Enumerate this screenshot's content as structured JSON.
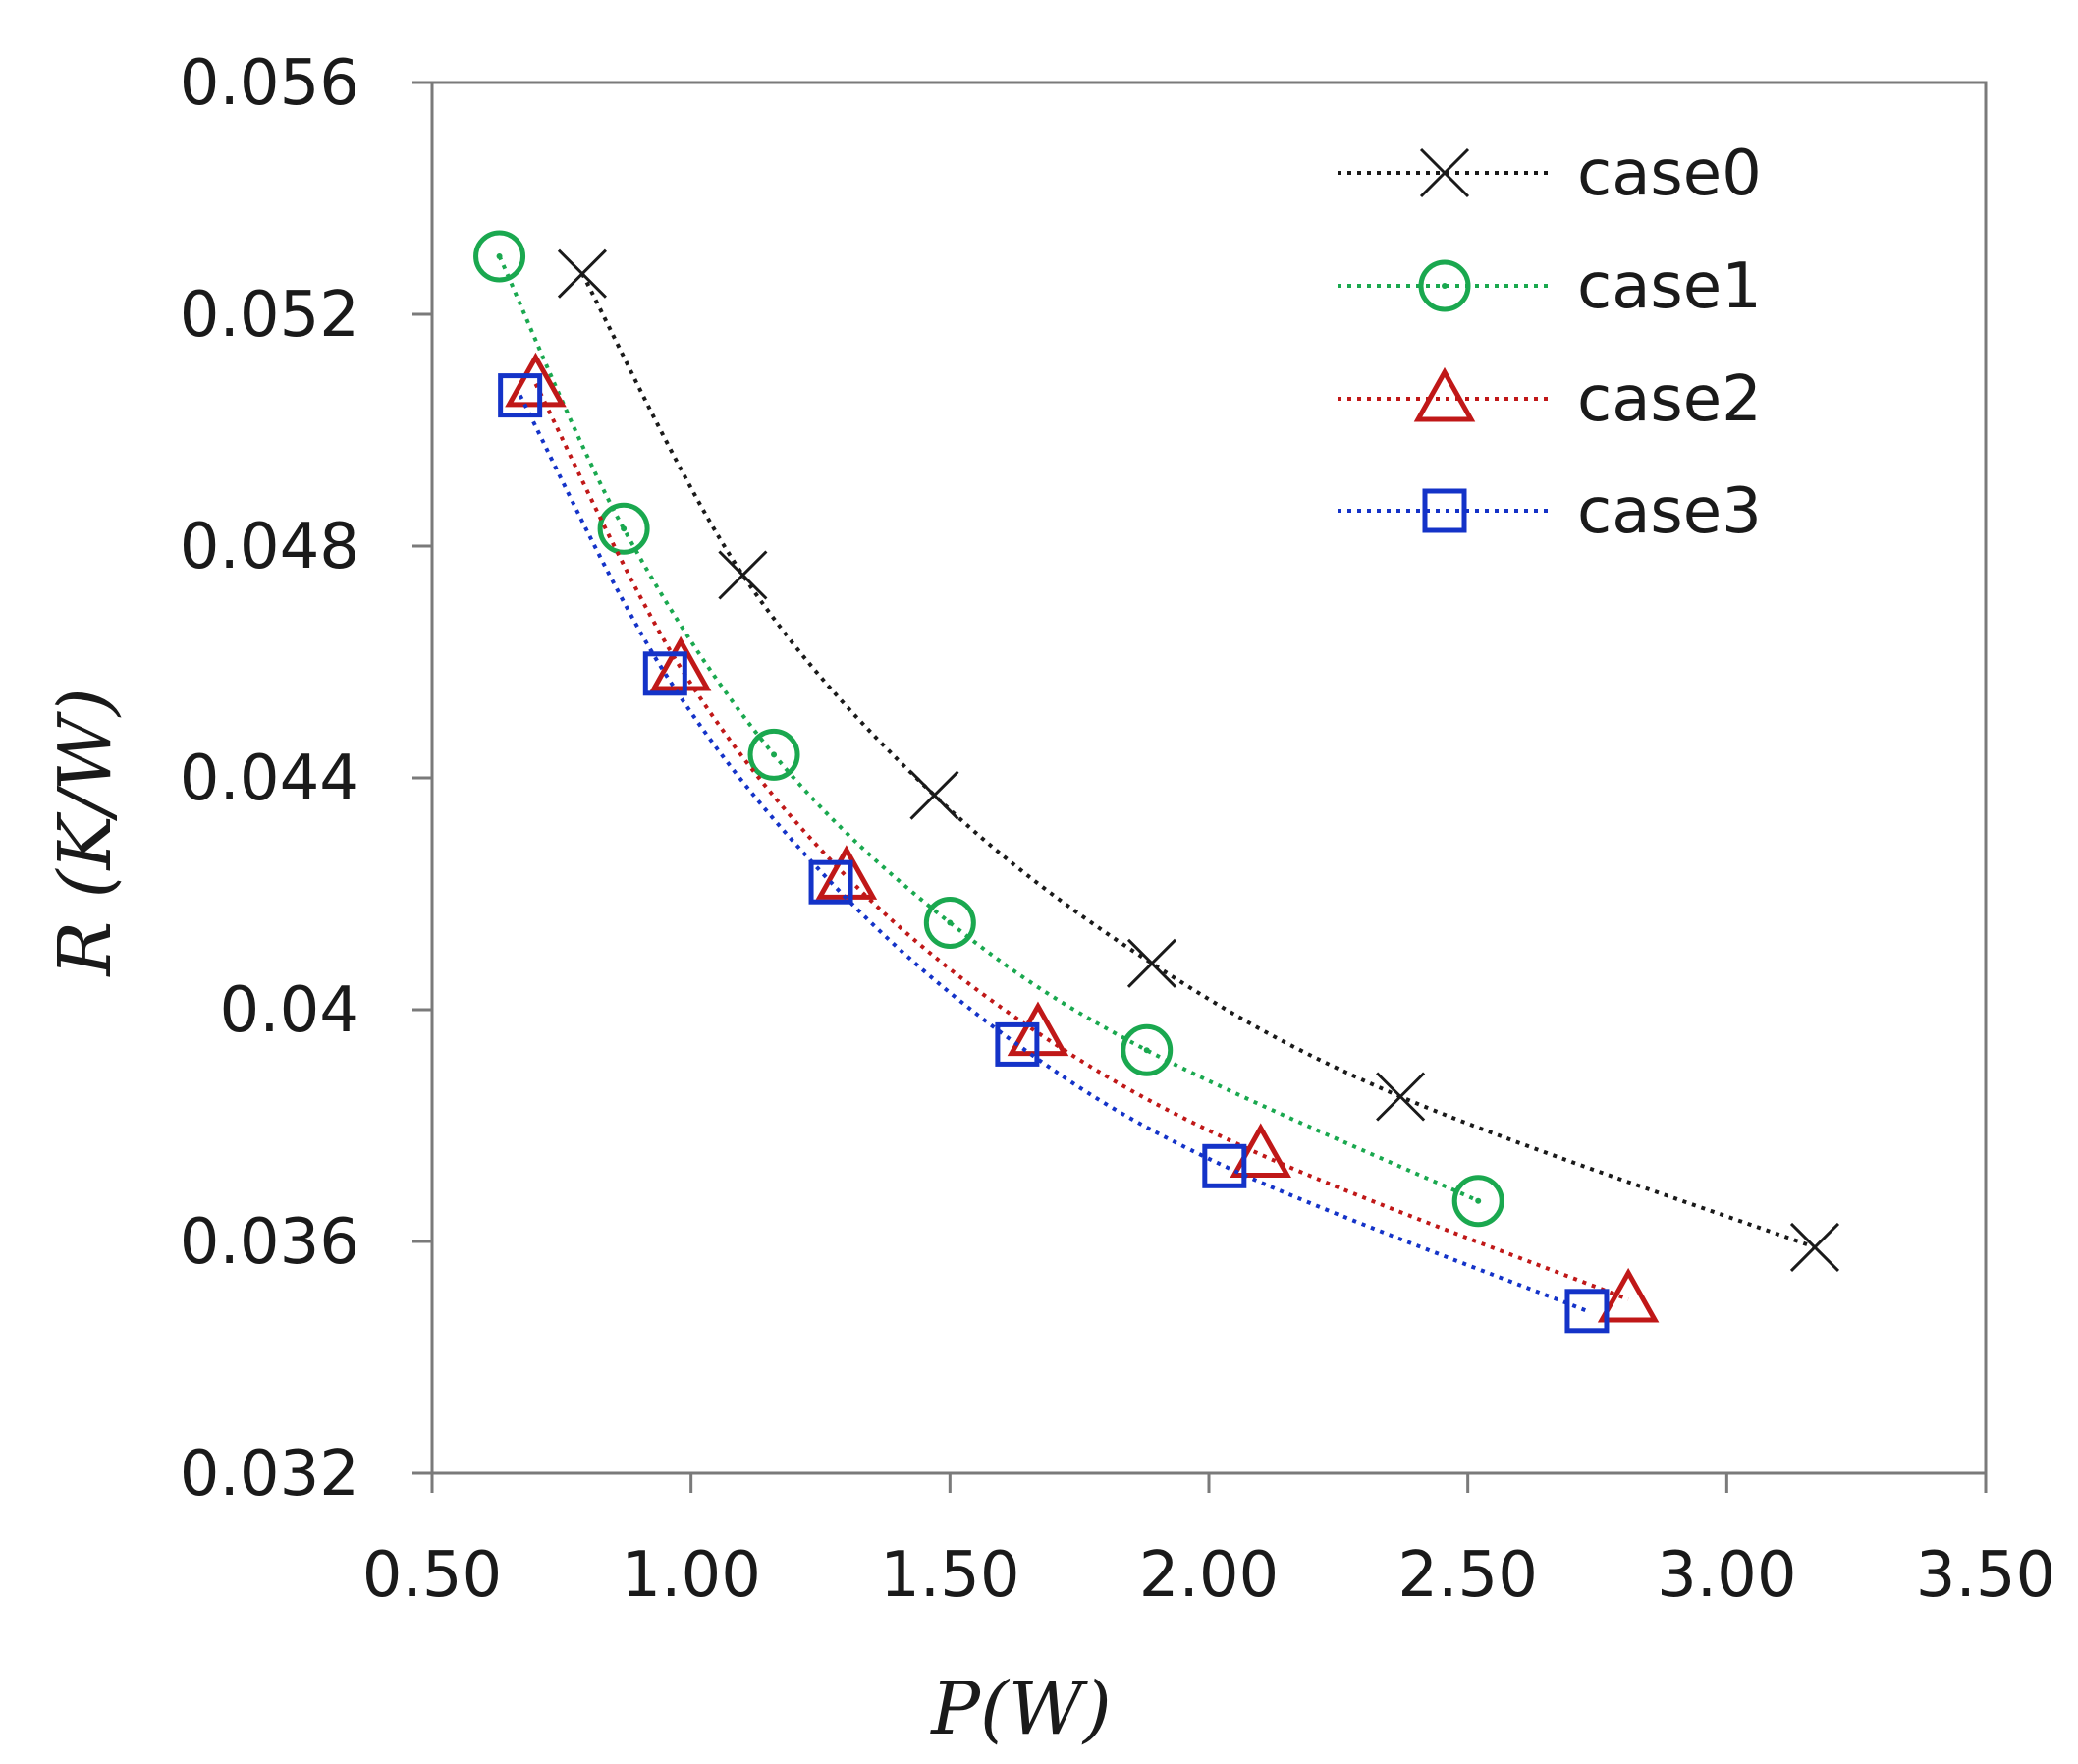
{
  "chart_data": {
    "type": "line",
    "title": "",
    "xlabel": "P(W)",
    "ylabel": "R (K/W)",
    "xlim": [
      0.5,
      3.5
    ],
    "ylim": [
      0.032,
      0.056
    ],
    "xticks": [
      "0.50",
      "1.00",
      "1.50",
      "2.00",
      "2.50",
      "3.00",
      "3.50"
    ],
    "yticks": [
      "0.032",
      "0.036",
      "0.04",
      "0.044",
      "0.048",
      "0.052",
      "0.056"
    ],
    "xtick_values": [
      0.5,
      1.0,
      1.5,
      2.0,
      2.5,
      3.0,
      3.5
    ],
    "ytick_values": [
      0.032,
      0.036,
      0.04,
      0.044,
      0.048,
      0.052,
      0.056
    ],
    "grid": false,
    "legend_position": "top-right",
    "line_style": "dotted",
    "series": [
      {
        "name": "case0",
        "marker": "x",
        "color": "#1a1a1a",
        "x": [
          0.79,
          1.1,
          1.47,
          1.89,
          2.37,
          3.17
        ],
        "y": [
          0.0527,
          0.0475,
          0.0437,
          0.0408,
          0.0385,
          0.0359
        ]
      },
      {
        "name": "case1",
        "marker": "circle",
        "color": "#1aa84f",
        "x": [
          0.63,
          0.87,
          1.16,
          1.5,
          1.88,
          2.52
        ],
        "y": [
          0.053,
          0.0483,
          0.0444,
          0.0415,
          0.0393,
          0.0367
        ]
      },
      {
        "name": "case2",
        "marker": "triangle",
        "color": "#c01818",
        "x": [
          0.7,
          0.98,
          1.3,
          1.67,
          2.1,
          2.81
        ],
        "y": [
          0.0508,
          0.0459,
          0.0423,
          0.0396,
          0.0375,
          0.035
        ]
      },
      {
        "name": "case3",
        "marker": "square",
        "color": "#1433c8",
        "x": [
          0.67,
          0.95,
          1.27,
          1.63,
          2.03,
          2.73
        ],
        "y": [
          0.0506,
          0.0458,
          0.0422,
          0.0394,
          0.0373,
          0.0348
        ]
      }
    ]
  }
}
